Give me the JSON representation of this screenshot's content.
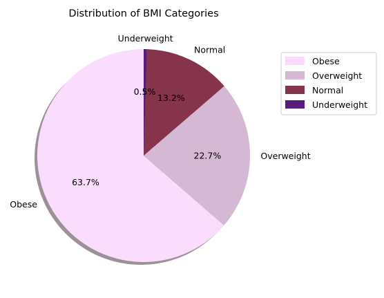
{
  "chart_data": {
    "type": "pie",
    "title": "Distribution of BMI Categories",
    "categories": [
      "Obese",
      "Overweight",
      "Normal",
      "Underweight"
    ],
    "values": [
      63.7,
      22.7,
      13.2,
      0.5
    ],
    "pct_labels": [
      "63.7%",
      "22.7%",
      "13.2%",
      "0.5%"
    ],
    "colors": [
      "#fadcfd",
      "#d4b8d4",
      "#86344c",
      "#581c7c"
    ],
    "start_angle_deg": 90,
    "direction": "counterclockwise",
    "shadow": true,
    "legend": {
      "placement": "upper-right-outside",
      "entries": [
        "Obese",
        "Overweight",
        "Normal",
        "Underweight"
      ]
    }
  }
}
